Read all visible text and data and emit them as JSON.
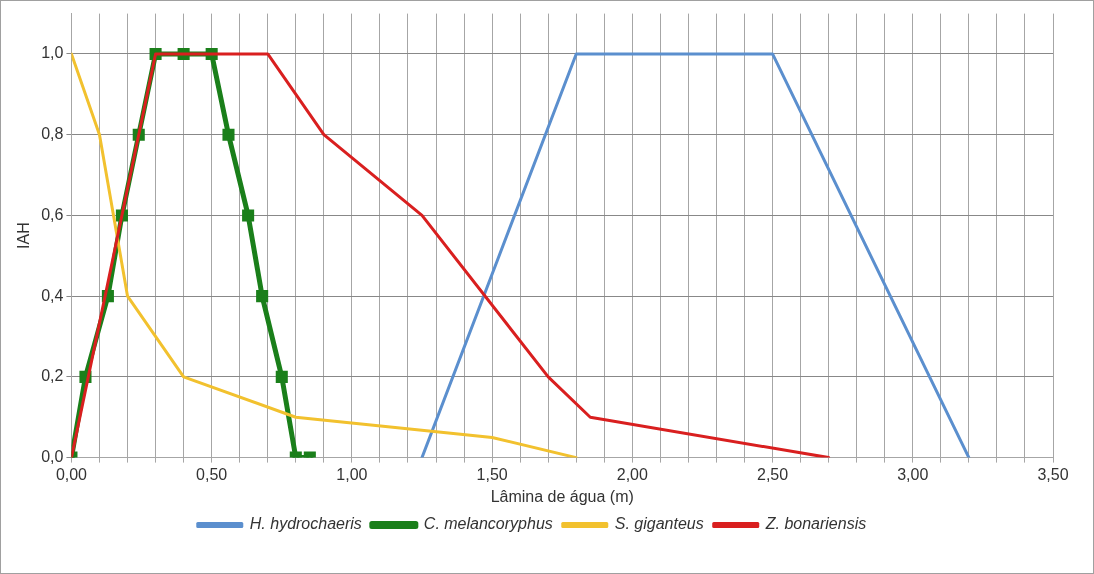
{
  "chart_data": {
    "type": "line",
    "xlabel": "Lâmina de água (m)",
    "ylabel": "IAH",
    "legend": "bottom",
    "grid": true,
    "xlim": [
      0,
      3.5
    ],
    "ylim": [
      0,
      1.1
    ],
    "xticks": [
      {
        "value": 0,
        "label": "0,00"
      },
      {
        "value": 0.1,
        "label": null
      },
      {
        "value": 0.2,
        "label": null
      },
      {
        "value": 0.3,
        "label": null
      },
      {
        "value": 0.4,
        "label": null
      },
      {
        "value": 0.5,
        "label": "0,50"
      },
      {
        "value": 0.6,
        "label": null
      },
      {
        "value": 0.7,
        "label": null
      },
      {
        "value": 0.8,
        "label": null
      },
      {
        "value": 0.9,
        "label": null
      },
      {
        "value": 1,
        "label": "1,00"
      },
      {
        "value": 1.1,
        "label": null
      },
      {
        "value": 1.2,
        "label": null
      },
      {
        "value": 1.3,
        "label": null
      },
      {
        "value": 1.4,
        "label": null
      },
      {
        "value": 1.5,
        "label": "1,50"
      },
      {
        "value": 1.6,
        "label": null
      },
      {
        "value": 1.7,
        "label": null
      },
      {
        "value": 1.8,
        "label": null
      },
      {
        "value": 1.9,
        "label": null
      },
      {
        "value": 2,
        "label": "2,00"
      },
      {
        "value": 2.1,
        "label": null
      },
      {
        "value": 2.2,
        "label": null
      },
      {
        "value": 2.3,
        "label": null
      },
      {
        "value": 2.4,
        "label": null
      },
      {
        "value": 2.5,
        "label": "2,50"
      },
      {
        "value": 2.6,
        "label": null
      },
      {
        "value": 2.7,
        "label": null
      },
      {
        "value": 2.8,
        "label": null
      },
      {
        "value": 2.9,
        "label": null
      },
      {
        "value": 3,
        "label": "3,00"
      },
      {
        "value": 3.1,
        "label": null
      },
      {
        "value": 3.2,
        "label": null
      },
      {
        "value": 3.3,
        "label": null
      },
      {
        "value": 3.4,
        "label": null
      },
      {
        "value": 3.5,
        "label": "3,50"
      }
    ],
    "yticks": [
      {
        "value": 0,
        "label": "0,0"
      },
      {
        "value": 0.2,
        "label": "0,2"
      },
      {
        "value": 0.4,
        "label": "0,4"
      },
      {
        "value": 0.6,
        "label": "0,6"
      },
      {
        "value": 0.8,
        "label": "0,8"
      },
      {
        "value": 1,
        "label": "1,0"
      }
    ],
    "series": [
      {
        "name": "H. hydrochaeris",
        "color": "#5b8fce",
        "marker": "none",
        "x": [
          1.25,
          1.8,
          2.5,
          3.2
        ],
        "values": [
          0,
          1,
          1,
          0
        ]
      },
      {
        "name": "C. melancoryphus",
        "color": "#1a7f1a",
        "marker": "square",
        "x": [
          0,
          0.05,
          0.13,
          0.18,
          0.24,
          0.3,
          0.4,
          0.5,
          0.56,
          0.63,
          0.68,
          0.75,
          0.8,
          0.85
        ],
        "values": [
          0,
          0.2,
          0.4,
          0.6,
          0.8,
          1,
          1,
          1,
          0.8,
          0.6,
          0.4,
          0.2,
          0,
          0
        ]
      },
      {
        "name": "S. giganteus",
        "color": "#f2c12e",
        "marker": "none",
        "x": [
          0,
          0.1,
          0.2,
          0.4,
          0.8,
          1.5,
          1.8
        ],
        "values": [
          1,
          0.8,
          0.4,
          0.2,
          0.1,
          0.05,
          0
        ]
      },
      {
        "name": "Z. bonariensis",
        "color": "#d91f1f",
        "marker": "none",
        "x": [
          0,
          0.3,
          0.7,
          0.9,
          1.25,
          1.7,
          1.85,
          2.7
        ],
        "values": [
          0,
          1,
          1,
          0.8,
          0.6,
          0.2,
          0.1,
          0
        ]
      }
    ]
  }
}
